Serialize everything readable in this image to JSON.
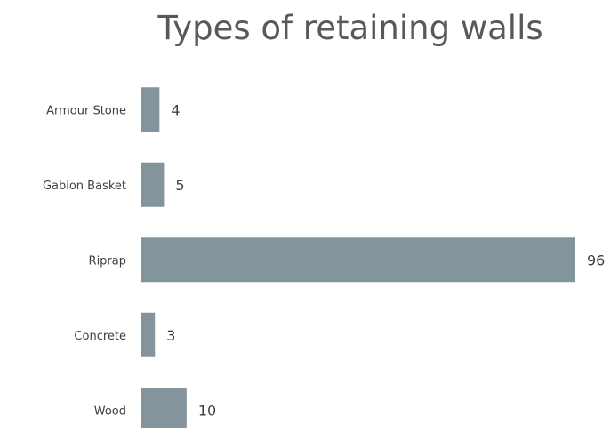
{
  "chart_data": {
    "type": "bar",
    "orientation": "horizontal",
    "title": "Types of retaining walls",
    "xlabel": "",
    "ylabel": "",
    "categories": [
      "Armour Stone",
      "Gabion Basket",
      "Riprap",
      "Concrete",
      "Wood"
    ],
    "values": [
      4,
      5,
      96,
      3,
      10
    ],
    "data_labels": [
      "4",
      "5",
      "96",
      "3",
      "10"
    ],
    "xlim": [
      0,
      96
    ],
    "grid": false,
    "legend": "none",
    "bar_color": "#84949d"
  }
}
